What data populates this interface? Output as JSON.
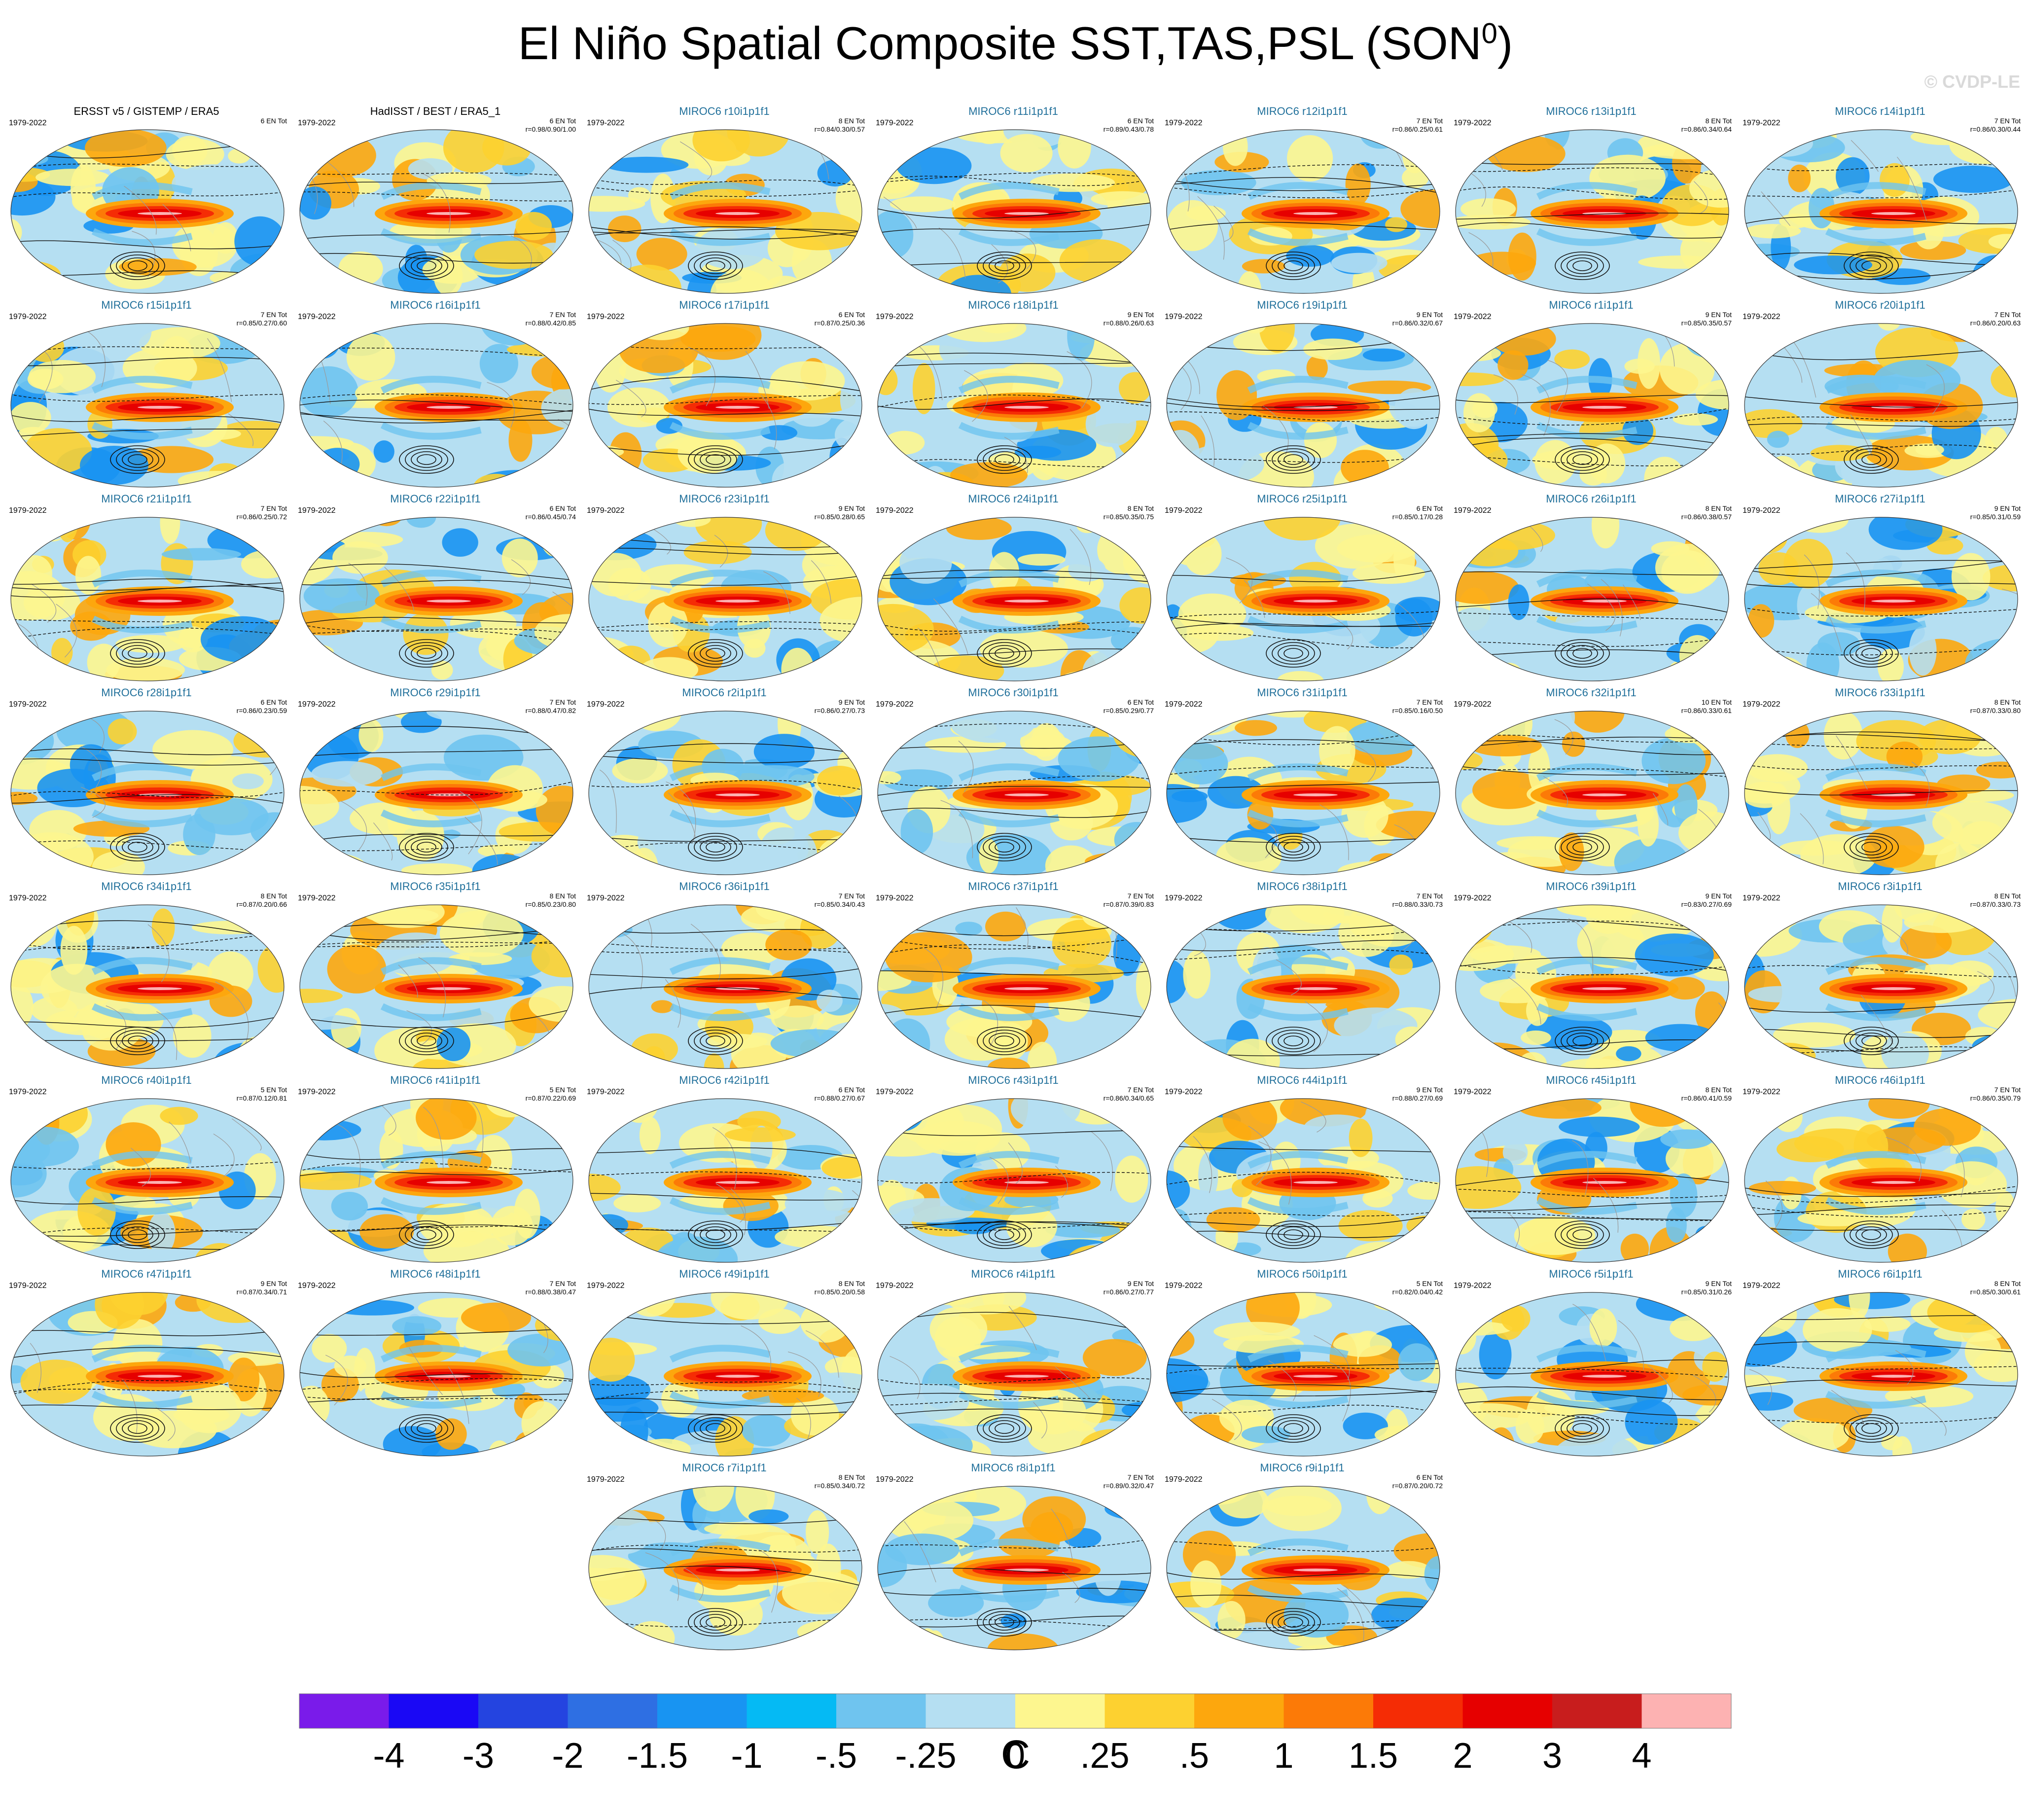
{
  "title": {
    "main": "El Niño Spatial Composite SST,TAS,PSL (SON",
    "superscript": "0",
    "close": ")"
  },
  "watermark": "© CVDP-LE",
  "chart_data": {
    "type": "heatmap",
    "description_of_panels": [],
    "colorbar": {
      "tick_labels": [
        "-4",
        "-3",
        "-2",
        "-1.5",
        "-1",
        "-.5",
        "-.25",
        "0",
        ".25",
        ".5",
        "1",
        "1.5",
        "2",
        "3",
        "4"
      ],
      "colors": [
        "#7a1bea",
        "#1a08f5",
        "#2444e0",
        "#2e6fe3",
        "#1894f2",
        "#05baf4",
        "#6fc4ef",
        "#b5dff2",
        "#fdf68f",
        "#fdd130",
        "#fda70d",
        "#fc7a07",
        "#f52c05",
        "#e60000",
        "#c81d1d",
        "#fdb2b2"
      ],
      "unit": "C"
    },
    "panels": [
      {
        "title": "ERSST v5 / GISTEMP / ERA5",
        "observed": true,
        "period": "1979-2022",
        "count": "6 EN Tot",
        "stats": ""
      },
      {
        "title": "HadISST / BEST / ERA5_1",
        "observed": true,
        "period": "1979-2022",
        "count": "6 EN Tot",
        "stats": "r=0.98/0.90/1.00"
      },
      {
        "title": "MIROC6 r10i1p1f1",
        "period": "1979-2022",
        "count": "8 EN Tot",
        "stats": "r=0.84/0.30/0.57"
      },
      {
        "title": "MIROC6 r11i1p1f1",
        "period": "1979-2022",
        "count": "6 EN Tot",
        "stats": "r=0.89/0.43/0.78"
      },
      {
        "title": "MIROC6 r12i1p1f1",
        "period": "1979-2022",
        "count": "7 EN Tot",
        "stats": "r=0.86/0.25/0.61"
      },
      {
        "title": "MIROC6 r13i1p1f1",
        "period": "1979-2022",
        "count": "8 EN Tot",
        "stats": "r=0.86/0.34/0.64"
      },
      {
        "title": "MIROC6 r14i1p1f1",
        "period": "1979-2022",
        "count": "7 EN Tot",
        "stats": "r=0.86/0.30/0.44"
      },
      {
        "title": "MIROC6 r15i1p1f1",
        "period": "1979-2022",
        "count": "7 EN Tot",
        "stats": "r=0.85/0.27/0.60"
      },
      {
        "title": "MIROC6 r16i1p1f1",
        "period": "1979-2022",
        "count": "7 EN Tot",
        "stats": "r=0.88/0.42/0.85"
      },
      {
        "title": "MIROC6 r17i1p1f1",
        "period": "1979-2022",
        "count": "6 EN Tot",
        "stats": "r=0.87/0.25/0.36"
      },
      {
        "title": "MIROC6 r18i1p1f1",
        "period": "1979-2022",
        "count": "9 EN Tot",
        "stats": "r=0.88/0.26/0.63"
      },
      {
        "title": "MIROC6 r19i1p1f1",
        "period": "1979-2022",
        "count": "9 EN Tot",
        "stats": "r=0.86/0.32/0.67"
      },
      {
        "title": "MIROC6 r1i1p1f1",
        "period": "1979-2022",
        "count": "9 EN Tot",
        "stats": "r=0.85/0.35/0.57"
      },
      {
        "title": "MIROC6 r20i1p1f1",
        "period": "1979-2022",
        "count": "7 EN Tot",
        "stats": "r=0.86/0.20/0.63"
      },
      {
        "title": "MIROC6 r21i1p1f1",
        "period": "1979-2022",
        "count": "7 EN Tot",
        "stats": "r=0.86/0.25/0.72"
      },
      {
        "title": "MIROC6 r22i1p1f1",
        "period": "1979-2022",
        "count": "6 EN Tot",
        "stats": "r=0.86/0.45/0.74"
      },
      {
        "title": "MIROC6 r23i1p1f1",
        "period": "1979-2022",
        "count": "9 EN Tot",
        "stats": "r=0.85/0.28/0.65"
      },
      {
        "title": "MIROC6 r24i1p1f1",
        "period": "1979-2022",
        "count": "8 EN Tot",
        "stats": "r=0.85/0.35/0.75"
      },
      {
        "title": "MIROC6 r25i1p1f1",
        "period": "1979-2022",
        "count": "6 EN Tot",
        "stats": "r=0.85/0.17/0.28"
      },
      {
        "title": "MIROC6 r26i1p1f1",
        "period": "1979-2022",
        "count": "8 EN Tot",
        "stats": "r=0.86/0.38/0.57"
      },
      {
        "title": "MIROC6 r27i1p1f1",
        "period": "1979-2022",
        "count": "9 EN Tot",
        "stats": "r=0.85/0.31/0.59"
      },
      {
        "title": "MIROC6 r28i1p1f1",
        "period": "1979-2022",
        "count": "6 EN Tot",
        "stats": "r=0.86/0.23/0.59"
      },
      {
        "title": "MIROC6 r29i1p1f1",
        "period": "1979-2022",
        "count": "7 EN Tot",
        "stats": "r=0.88/0.47/0.82"
      },
      {
        "title": "MIROC6 r2i1p1f1",
        "period": "1979-2022",
        "count": "9 EN Tot",
        "stats": "r=0.86/0.27/0.73"
      },
      {
        "title": "MIROC6 r30i1p1f1",
        "period": "1979-2022",
        "count": "6 EN Tot",
        "stats": "r=0.85/0.29/0.77"
      },
      {
        "title": "MIROC6 r31i1p1f1",
        "period": "1979-2022",
        "count": "7 EN Tot",
        "stats": "r=0.85/0.16/0.50"
      },
      {
        "title": "MIROC6 r32i1p1f1",
        "period": "1979-2022",
        "count": "10 EN Tot",
        "stats": "r=0.86/0.33/0.61"
      },
      {
        "title": "MIROC6 r33i1p1f1",
        "period": "1979-2022",
        "count": "8 EN Tot",
        "stats": "r=0.87/0.33/0.80"
      },
      {
        "title": "MIROC6 r34i1p1f1",
        "period": "1979-2022",
        "count": "8 EN Tot",
        "stats": "r=0.87/0.20/0.66"
      },
      {
        "title": "MIROC6 r35i1p1f1",
        "period": "1979-2022",
        "count": "8 EN Tot",
        "stats": "r=0.85/0.23/0.80"
      },
      {
        "title": "MIROC6 r36i1p1f1",
        "period": "1979-2022",
        "count": "7 EN Tot",
        "stats": "r=0.85/0.34/0.43"
      },
      {
        "title": "MIROC6 r37i1p1f1",
        "period": "1979-2022",
        "count": "7 EN Tot",
        "stats": "r=0.87/0.39/0.83"
      },
      {
        "title": "MIROC6 r38i1p1f1",
        "period": "1979-2022",
        "count": "7 EN Tot",
        "stats": "r=0.88/0.33/0.73"
      },
      {
        "title": "MIROC6 r39i1p1f1",
        "period": "1979-2022",
        "count": "9 EN Tot",
        "stats": "r=0.83/0.27/0.69"
      },
      {
        "title": "MIROC6 r3i1p1f1",
        "period": "1979-2022",
        "count": "8 EN Tot",
        "stats": "r=0.87/0.33/0.73"
      },
      {
        "title": "MIROC6 r40i1p1f1",
        "period": "1979-2022",
        "count": "5 EN Tot",
        "stats": "r=0.87/0.12/0.81"
      },
      {
        "title": "MIROC6 r41i1p1f1",
        "period": "1979-2022",
        "count": "5 EN Tot",
        "stats": "r=0.87/0.22/0.69"
      },
      {
        "title": "MIROC6 r42i1p1f1",
        "period": "1979-2022",
        "count": "6 EN Tot",
        "stats": "r=0.88/0.27/0.67"
      },
      {
        "title": "MIROC6 r43i1p1f1",
        "period": "1979-2022",
        "count": "7 EN Tot",
        "stats": "r=0.86/0.34/0.65"
      },
      {
        "title": "MIROC6 r44i1p1f1",
        "period": "1979-2022",
        "count": "9 EN Tot",
        "stats": "r=0.88/0.27/0.69"
      },
      {
        "title": "MIROC6 r45i1p1f1",
        "period": "1979-2022",
        "count": "8 EN Tot",
        "stats": "r=0.86/0.41/0.59"
      },
      {
        "title": "MIROC6 r46i1p1f1",
        "period": "1979-2022",
        "count": "7 EN Tot",
        "stats": "r=0.86/0.35/0.79"
      },
      {
        "title": "MIROC6 r47i1p1f1",
        "period": "1979-2022",
        "count": "9 EN Tot",
        "stats": "r=0.87/0.34/0.71"
      },
      {
        "title": "MIROC6 r48i1p1f1",
        "period": "1979-2022",
        "count": "7 EN Tot",
        "stats": "r=0.88/0.38/0.47"
      },
      {
        "title": "MIROC6 r49i1p1f1",
        "period": "1979-2022",
        "count": "8 EN Tot",
        "stats": "r=0.85/0.20/0.58"
      },
      {
        "title": "MIROC6 r4i1p1f1",
        "period": "1979-2022",
        "count": "9 EN Tot",
        "stats": "r=0.86/0.27/0.77"
      },
      {
        "title": "MIROC6 r50i1p1f1",
        "period": "1979-2022",
        "count": "5 EN Tot",
        "stats": "r=0.82/0.04/0.42"
      },
      {
        "title": "MIROC6 r5i1p1f1",
        "period": "1979-2022",
        "count": "9 EN Tot",
        "stats": "r=0.85/0.31/0.26"
      },
      {
        "title": "MIROC6 r6i1p1f1",
        "period": "1979-2022",
        "count": "8 EN Tot",
        "stats": "r=0.85/0.30/0.61"
      },
      {
        "title": "MIROC6 r7i1p1f1",
        "period": "1979-2022",
        "count": "8 EN Tot",
        "stats": "r=0.85/0.34/0.72"
      },
      {
        "title": "MIROC6 r8i1p1f1",
        "period": "1979-2022",
        "count": "7 EN Tot",
        "stats": "r=0.89/0.32/0.47"
      },
      {
        "title": "MIROC6 r9i1p1f1",
        "period": "1979-2022",
        "count": "6 EN Tot",
        "stats": "r=0.87/0.20/0.72"
      }
    ]
  }
}
